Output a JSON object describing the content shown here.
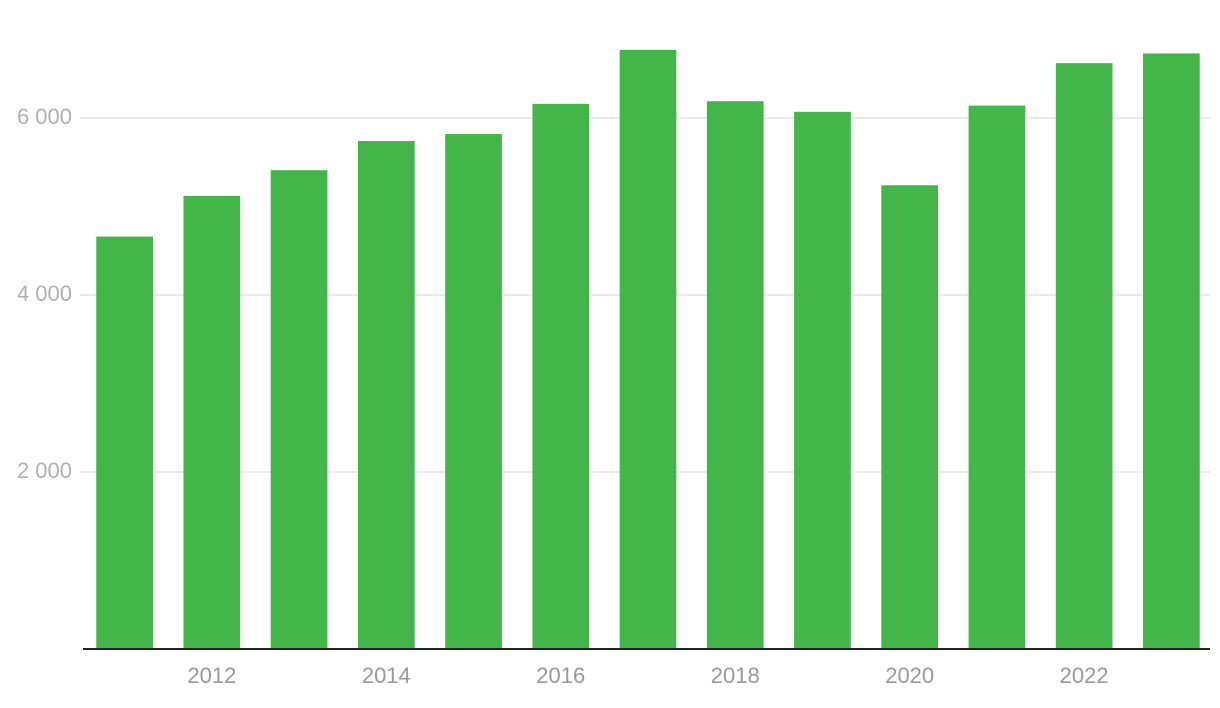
{
  "chart_data": {
    "type": "bar",
    "categories": [
      null,
      "2012",
      null,
      "2014",
      null,
      "2016",
      null,
      "2018",
      null,
      "2020",
      null,
      "2022",
      null
    ],
    "values": [
      4660,
      5120,
      5410,
      5740,
      5820,
      6160,
      6770,
      6190,
      6070,
      5240,
      6140,
      6620,
      6730
    ],
    "color": "#43b649",
    "ylim": [
      0,
      7000
    ],
    "yticks": [
      {
        "value": 2000,
        "label": "2 000"
      },
      {
        "value": 4000,
        "label": "4 000"
      },
      {
        "value": 6000,
        "label": "6 000"
      }
    ],
    "grid": true
  }
}
